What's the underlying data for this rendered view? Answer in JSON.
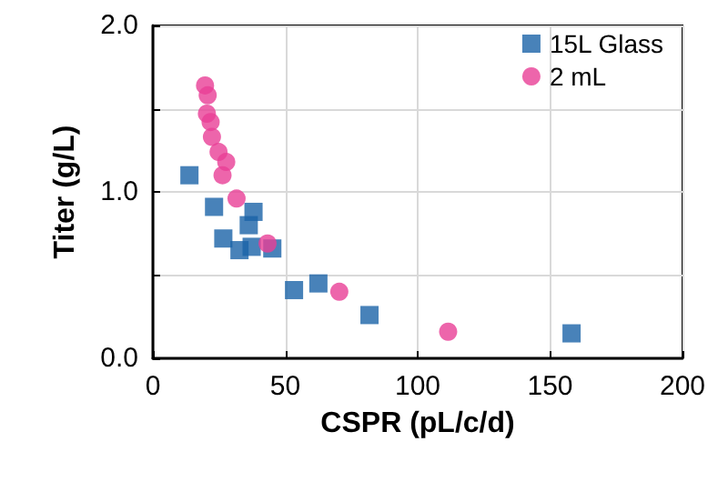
{
  "chart_data": {
    "type": "scatter",
    "xlabel": "CSPR (pL/c/d)",
    "ylabel": "Titer (g/L)",
    "xlim": [
      0,
      200
    ],
    "xticks": [
      0,
      50,
      100,
      150,
      200
    ],
    "ylim": [
      0,
      2
    ],
    "yticks": [
      {
        "value": 0,
        "label": "0.0"
      },
      {
        "value": 0.5,
        "label": null
      },
      {
        "value": 1,
        "label": "1.0"
      },
      {
        "value": 1.5,
        "label": null
      },
      {
        "value": 2,
        "label": "2.0"
      }
    ],
    "grid": true,
    "legend": "top right",
    "series": [
      {
        "name": "15L Glass",
        "color": "#1a63a8",
        "marker": "square",
        "x": [
          13.8,
          23.1,
          38.0,
          36.2,
          26.6,
          32.7,
          37.3,
          45.1,
          53.3,
          62.5,
          81.8,
          158.1
        ],
        "values": [
          1.1,
          0.91,
          0.88,
          0.8,
          0.72,
          0.65,
          0.67,
          0.66,
          0.41,
          0.45,
          0.26,
          0.15
        ]
      },
      {
        "name": "2 mL",
        "color": "#e83e96",
        "marker": "circle",
        "x": [
          19.7,
          20.7,
          20.4,
          21.8,
          22.3,
          24.8,
          27.7,
          26.3,
          31.6,
          43.3,
          70.4,
          111.5
        ],
        "values": [
          1.64,
          1.58,
          1.47,
          1.42,
          1.33,
          1.24,
          1.18,
          1.1,
          0.96,
          0.69,
          0.4,
          0.16
        ]
      }
    ]
  }
}
